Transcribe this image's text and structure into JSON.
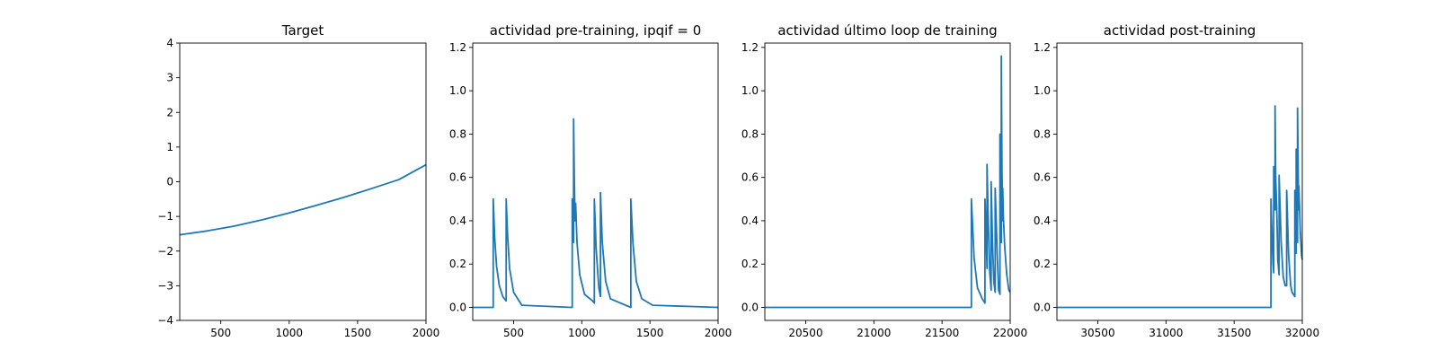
{
  "chart_data": [
    {
      "type": "line",
      "title": "Target",
      "xlim": [
        200,
        2000
      ],
      "ylim": [
        -4,
        4
      ],
      "xticks": [
        "500",
        "1000",
        "1500",
        "2000"
      ],
      "xtick_values": [
        500,
        1000,
        1500,
        2000
      ],
      "yticks": [
        "−4",
        "−3",
        "−2",
        "−1",
        "0",
        "1",
        "2",
        "3",
        "4"
      ],
      "ytick_values": [
        -4,
        -3,
        -2,
        -1,
        0,
        1,
        2,
        3,
        4
      ],
      "color": "#1f77b4",
      "series": [
        {
          "x": [
            200,
            400,
            600,
            800,
            1000,
            1200,
            1400,
            1600,
            1800,
            2000
          ],
          "y": [
            -1.53,
            -1.42,
            -1.28,
            -1.1,
            -0.9,
            -0.68,
            -0.45,
            -0.2,
            0.06,
            0.49
          ]
        }
      ]
    },
    {
      "type": "line",
      "title": "actividad pre-training, ipqif = 0",
      "xlim": [
        200,
        2000
      ],
      "ylim": [
        -0.06,
        1.22
      ],
      "xticks": [
        "500",
        "1000",
        "1500",
        "2000"
      ],
      "xtick_values": [
        500,
        1000,
        1500,
        2000
      ],
      "yticks": [
        "0.0",
        "0.2",
        "0.4",
        "0.6",
        "0.8",
        "1.0",
        "1.2"
      ],
      "ytick_values": [
        0,
        0.2,
        0.4,
        0.6,
        0.8,
        1.0,
        1.2
      ],
      "color": "#1f77b4",
      "series": [
        {
          "x": [
            200,
            350,
            350,
            360,
            375,
            395,
            420,
            445,
            445,
            455,
            470,
            500,
            560,
            930,
            930,
            940,
            940,
            945,
            950,
            955,
            965,
            985,
            1020,
            1080,
            1092,
            1092,
            1105,
            1125,
            1137,
            1137,
            1150,
            1175,
            1210,
            1360,
            1360,
            1375,
            1400,
            1440,
            1520,
            2000
          ],
          "y": [
            0,
            0,
            0.5,
            0.33,
            0.19,
            0.1,
            0.05,
            0.03,
            0.5,
            0.34,
            0.18,
            0.07,
            0.01,
            0,
            0.5,
            0.3,
            0.87,
            0.6,
            0.4,
            0.48,
            0.3,
            0.15,
            0.06,
            0.03,
            0.02,
            0.5,
            0.27,
            0.09,
            0.05,
            0.53,
            0.3,
            0.12,
            0.04,
            0,
            0.5,
            0.3,
            0.12,
            0.04,
            0.01,
            0
          ]
        }
      ]
    },
    {
      "type": "line",
      "title": "actividad último loop de training",
      "xlim": [
        20200,
        22000
      ],
      "ylim": [
        -0.06,
        1.22
      ],
      "xticks": [
        "20500",
        "21000",
        "21500",
        "22000"
      ],
      "xtick_values": [
        20500,
        21000,
        21500,
        22000
      ],
      "yticks": [
        "0.0",
        "0.2",
        "0.4",
        "0.6",
        "0.8",
        "1.0",
        "1.2"
      ],
      "ytick_values": [
        0,
        0.2,
        0.4,
        0.6,
        0.8,
        1.0,
        1.2
      ],
      "color": "#1f77b4",
      "series": [
        {
          "x": [
            20200,
            21715,
            21715,
            21735,
            21760,
            21795,
            21805,
            21815,
            21815,
            21825,
            21830,
            21830,
            21840,
            21850,
            21860,
            21860,
            21870,
            21880,
            21890,
            21890,
            21905,
            21915,
            21925,
            21925,
            21930,
            21935,
            21935,
            21940,
            21945,
            21945,
            21950,
            21960,
            21975,
            21990,
            22000
          ],
          "y": [
            0,
            0,
            0.5,
            0.23,
            0.09,
            0.04,
            0.03,
            0.02,
            0.5,
            0.3,
            0.18,
            0.66,
            0.38,
            0.16,
            0.08,
            0.58,
            0.3,
            0.12,
            0.07,
            0.55,
            0.24,
            0.08,
            0.06,
            0.8,
            0.32,
            0.3,
            1.16,
            0.62,
            0.4,
            0.55,
            0.42,
            0.28,
            0.15,
            0.08,
            0.07
          ]
        }
      ]
    },
    {
      "type": "line",
      "title": "actividad post-training",
      "xlim": [
        30200,
        32000
      ],
      "ylim": [
        -0.06,
        1.22
      ],
      "xticks": [
        "30500",
        "31000",
        "31500",
        "32000"
      ],
      "xtick_values": [
        30500,
        31000,
        31500,
        32000
      ],
      "yticks": [
        "0.0",
        "0.2",
        "0.4",
        "0.6",
        "0.8",
        "1.0",
        "1.2"
      ],
      "ytick_values": [
        0,
        0.2,
        0.4,
        0.6,
        0.8,
        1.0,
        1.2
      ],
      "color": "#1f77b4",
      "series": [
        {
          "x": [
            30200,
            31770,
            31770,
            31785,
            31790,
            31790,
            31800,
            31800,
            31805,
            31815,
            31820,
            31830,
            31830,
            31845,
            31860,
            31875,
            31885,
            31885,
            31900,
            31915,
            31925,
            31935,
            31945,
            31945,
            31950,
            31955,
            31955,
            31960,
            31965,
            31965,
            31970,
            31975,
            31975,
            31985,
            31995,
            32000
          ],
          "y": [
            0,
            0,
            0.5,
            0.2,
            0.16,
            0.65,
            0.45,
            0.93,
            0.6,
            0.4,
            0.22,
            0.15,
            0.61,
            0.3,
            0.14,
            0.1,
            0.1,
            0.54,
            0.24,
            0.1,
            0.07,
            0.06,
            0.05,
            0.54,
            0.35,
            0.25,
            0.73,
            0.45,
            0.3,
            0.92,
            0.6,
            0.45,
            0.56,
            0.36,
            0.24,
            0.22
          ]
        }
      ]
    }
  ]
}
